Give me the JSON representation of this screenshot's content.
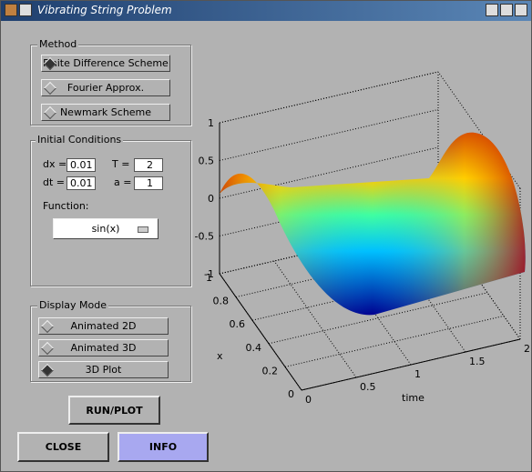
{
  "window": {
    "title": "Vibrating String Problem"
  },
  "method": {
    "label": "Method",
    "options": [
      "Finite Difference Scheme",
      "Fourier Approx.",
      "Newmark Scheme"
    ],
    "selected": 0
  },
  "initial_conditions": {
    "label": "Initial Conditions",
    "fields": [
      {
        "label": "dx =",
        "value": "0.01"
      },
      {
        "label": "T =",
        "value": "2"
      },
      {
        "label": "dt =",
        "value": "0.01"
      },
      {
        "label": "a =",
        "value": "1"
      }
    ],
    "function_label": "Function:",
    "function_value": "sin(x)"
  },
  "display_mode": {
    "label": "Display Mode",
    "options": [
      "Animated 2D",
      "Animated 3D",
      "3D Plot"
    ],
    "selected": 2
  },
  "buttons": {
    "run": "RUN/PLOT",
    "close": "CLOSE",
    "info": "INFO"
  },
  "plot": {
    "zlim": [
      -1,
      1
    ],
    "zticks": [
      1,
      0.5,
      0,
      -0.5,
      -1
    ],
    "xlim": [
      0,
      1
    ],
    "xticks": [
      0,
      0.2,
      0.4,
      0.6,
      0.8,
      1
    ],
    "xlabel": "x",
    "tlim": [
      0,
      2
    ],
    "tticks": [
      0,
      0.5,
      1,
      1.5,
      2
    ],
    "tlabel": "time"
  }
}
